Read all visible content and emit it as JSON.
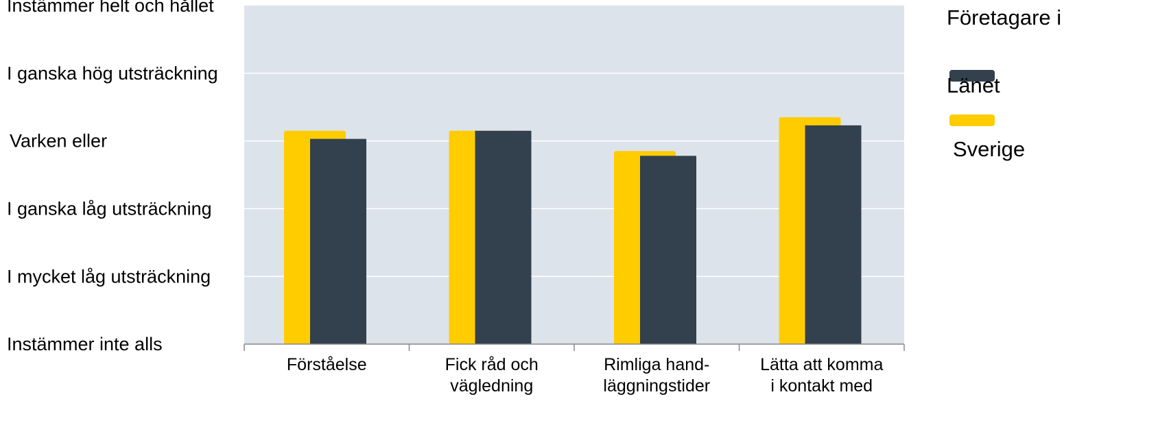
{
  "chart_data": {
    "type": "bar",
    "title": "",
    "xlabel": "",
    "ylabel": "",
    "y_tick_labels": [
      "Instämmer inte alls",
      "I mycket låg utsträckning",
      "I ganska låg utsträckning",
      "Varken eller",
      "I ganska hög utsträckning",
      "Instämmer helt och hållet"
    ],
    "ylim": [
      1,
      6
    ],
    "grid": true,
    "categories": [
      [
        "Förståelse"
      ],
      [
        "Fick råd och",
        "vägledning"
      ],
      [
        "Rimliga hand-",
        "läggningstider"
      ],
      [
        "Lätta att komma",
        "i kontakt med"
      ]
    ],
    "series": [
      {
        "name": "Sverige",
        "color": "#FFCC00",
        "values": [
          4.15,
          4.15,
          3.85,
          4.35
        ]
      },
      {
        "name": "Länet",
        "color": "#33404D",
        "values": [
          4.03,
          4.15,
          3.78,
          4.23
        ]
      }
    ],
    "legend": {
      "title": "Företagare i",
      "placement": "right",
      "entries": [
        {
          "label": "Länet",
          "color": "#33404D"
        },
        {
          "label": "Sverige",
          "color": "#FFCC00"
        }
      ]
    },
    "plot_background": "#DDE3EA",
    "gridline_color": "#FFFFFF"
  }
}
